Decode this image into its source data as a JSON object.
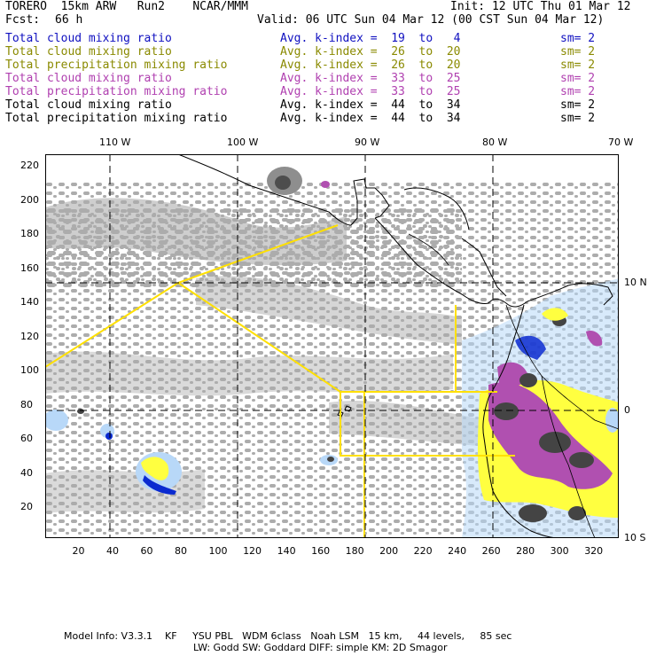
{
  "header": {
    "model": "TORERO  15km ARW   Run2    NCAR/MMM",
    "init": "Init: 12 UTC Thu 01 Mar 12",
    "fcst_label": "Fcst:",
    "fcst_value": "66 h",
    "valid": "Valid: 06 UTC Sun 04 Mar 12 (00 CST Sun 04 Mar 12)"
  },
  "legend": [
    {
      "field": "Total cloud mixing ratio",
      "kindex": "Avg. k-index =  19  to   4",
      "sm": "sm= 2",
      "color": "#1010c0"
    },
    {
      "field": "Total cloud mixing ratio",
      "kindex": "Avg. k-index =  26  to  20",
      "sm": "sm= 2",
      "color": "#8a8a00"
    },
    {
      "field": "Total precipitation mixing ratio",
      "kindex": "Avg. k-index =  26  to  20",
      "sm": "sm= 2",
      "color": "#8a8a00"
    },
    {
      "field": "Total cloud mixing ratio",
      "kindex": "Avg. k-index =  33  to  25",
      "sm": "sm= 2",
      "color": "#b040b0"
    },
    {
      "field": "Total precipitation mixing ratio",
      "kindex": "Avg. k-index =  33  to  25",
      "sm": "sm= 2",
      "color": "#b040b0"
    },
    {
      "field": "Total cloud mixing ratio",
      "kindex": "Avg. k-index =  44  to  34",
      "sm": "sm= 2",
      "color": "#000000"
    },
    {
      "field": "Total precipitation mixing ratio",
      "kindex": "Avg. k-index =  44  to  34",
      "sm": "sm= 2",
      "color": "#000000"
    }
  ],
  "map": {
    "top_ticks": [
      "110 W",
      "100 W",
      "90 W",
      "80 W",
      "70 W"
    ],
    "right_ticks": [
      "10 N",
      "0",
      "10 S"
    ],
    "left_ticks": [
      "220",
      "200",
      "180",
      "160",
      "140",
      "120",
      "100",
      "80",
      "60",
      "40",
      "20"
    ],
    "bottom_ticks": [
      "20",
      "40",
      "60",
      "80",
      "100",
      "120",
      "140",
      "160",
      "180",
      "200",
      "220",
      "240",
      "260",
      "280",
      "300",
      "320"
    ],
    "colors": {
      "cloud_gray": "#a8a8a8",
      "dark_core": "#444444",
      "yellow": "#ffff40",
      "purple": "#b050b0",
      "blue_light": "#b8d8f8",
      "blue_dark": "#0a2ad0",
      "boundary": "#ffe000"
    }
  },
  "footer": {
    "line1": "Model Info: V3.3.1    KF     YSU PBL   WDM 6class   Noah LSM   15 km,     44 levels,     85 sec",
    "line2": "LW: Godd SW: Goddard DIFF: simple KM: 2D Smagor"
  }
}
